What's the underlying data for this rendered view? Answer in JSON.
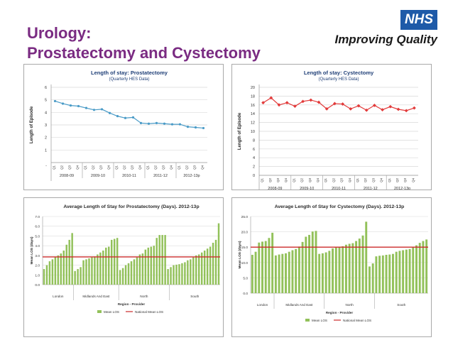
{
  "slide": {
    "title_line1": "Urology:",
    "title_line2": "Prostatectomy and Cystectomy",
    "title_color": "#7a2b82"
  },
  "logo": {
    "nhs": "NHS",
    "tagline": "Improving Quality",
    "nhs_color": "#1e5aa8"
  },
  "chart_data": [
    {
      "type": "line",
      "title": "Length of stay: Prostatectomy",
      "subtitle": "(Quarterly HES Data)",
      "xlabel": "",
      "ylabel": "Length of Episode",
      "ylim": [
        0,
        6
      ],
      "yticks": [
        1,
        2,
        3,
        4,
        5,
        6
      ],
      "ytick_labels": [
        "1",
        "2",
        "3",
        "4",
        "5",
        "6"
      ],
      "bottom_label": "-",
      "quarter_labels": [
        "Q1",
        "Q2",
        "Q3",
        "Q4",
        "Q1",
        "Q2",
        "Q3",
        "Q4",
        "Q1",
        "Q2",
        "Q3",
        "Q4",
        "Q1",
        "Q2",
        "Q3",
        "Q4",
        "Q1",
        "Q2",
        "Q3",
        "Q4"
      ],
      "year_groups": [
        "2008-09",
        "2009-10",
        "2010-11",
        "2011-12",
        "2012-13p"
      ],
      "grid": true,
      "color": "#4a9bc7",
      "series": [
        {
          "values": [
            4.9,
            4.7,
            4.55,
            4.5,
            4.35,
            4.2,
            4.25,
            3.95,
            3.7,
            3.55,
            3.6,
            3.15,
            3.1,
            3.15,
            3.1,
            3.05,
            3.05,
            2.85,
            2.8,
            2.75
          ]
        }
      ]
    },
    {
      "type": "line",
      "title": "Length of stay: Cystectomy",
      "subtitle": "(Quarterly HES Data)",
      "xlabel": "",
      "ylabel": "Length of Episode",
      "ylim": [
        0,
        20
      ],
      "yticks": [
        0,
        2,
        4,
        6,
        8,
        10,
        12,
        14,
        16,
        18,
        20
      ],
      "ytick_labels": [
        "0",
        "2",
        "4",
        "6",
        "8",
        "10",
        "12",
        "14",
        "16",
        "18",
        "20"
      ],
      "quarter_labels": [
        "Q1",
        "Q2",
        "Q3",
        "Q4",
        "Q1",
        "Q2",
        "Q3",
        "Q4",
        "Q1",
        "Q2",
        "Q3",
        "Q4",
        "Q1",
        "Q2",
        "Q3",
        "Q4",
        "Q1",
        "Q2",
        "Q3",
        "Q4"
      ],
      "year_groups": [
        "2008-09",
        "2009-10",
        "2010-11",
        "2011-12",
        "2012-13p"
      ],
      "grid": true,
      "color": "#e23a3a",
      "series": [
        {
          "values": [
            16.5,
            17.6,
            16.0,
            16.5,
            15.7,
            16.8,
            17.1,
            16.6,
            15.1,
            16.3,
            16.2,
            15.1,
            15.8,
            14.8,
            15.9,
            14.9,
            15.6,
            15.0,
            14.7,
            15.3
          ]
        }
      ]
    },
    {
      "type": "bar",
      "title": "Average Length of Stay for Prostatectomy (Days). 2012-13p",
      "xlabel": "Region - Provider",
      "ylabel": "Mean LOS (days)",
      "ylim": [
        0,
        7
      ],
      "yticks": [
        0,
        1,
        2,
        3,
        4,
        5,
        6,
        7
      ],
      "ytick_labels": [
        "0.0",
        "1.0",
        "2.0",
        "3.0",
        "4.0",
        "5.0",
        "6.0",
        "7.0"
      ],
      "regions": [
        "London",
        "Midlands And East",
        "North",
        "South"
      ],
      "region_bounds": [
        11,
        27,
        45
      ],
      "bar_color": "#92c15a",
      "line_color": "#cc2a2a",
      "national_mean": 2.85,
      "legend": [
        "Mean LOS",
        "National Mean LOS"
      ],
      "grid": true,
      "values": [
        1.6,
        2.0,
        2.4,
        2.6,
        2.85,
        3.0,
        3.2,
        3.5,
        4.1,
        4.6,
        5.3,
        1.4,
        1.6,
        1.8,
        2.5,
        2.6,
        2.7,
        2.8,
        2.9,
        3.1,
        3.3,
        3.5,
        3.8,
        3.9,
        4.6,
        4.7,
        4.8,
        1.5,
        1.7,
        2.0,
        2.2,
        2.4,
        2.6,
        2.8,
        3.1,
        3.2,
        3.6,
        3.8,
        3.9,
        4.0,
        4.8,
        5.1,
        5.1,
        5.1,
        1.6,
        1.8,
        2.0,
        2.05,
        2.1,
        2.2,
        2.3,
        2.5,
        2.6,
        2.8,
        3.0,
        3.1,
        3.3,
        3.5,
        3.7,
        3.9,
        4.3,
        4.6,
        6.3
      ]
    },
    {
      "type": "bar",
      "title": "Average Length of Stay for Cystectomy (Days). 2012-13p",
      "xlabel": "Region - Provider",
      "ylabel": "Mean LOS (days)",
      "ylim": [
        0,
        25
      ],
      "yticks": [
        0,
        5,
        10,
        15,
        20,
        25
      ],
      "ytick_labels": [
        "0.0",
        "5.0",
        "10.0",
        "15.0",
        "20.0",
        "25.0"
      ],
      "regions": [
        "London",
        "Midlands And East",
        "North",
        "South"
      ],
      "region_bounds": [
        7,
        22,
        37
      ],
      "bar_color": "#92c15a",
      "line_color": "#cc2a2a",
      "national_mean": 15.0,
      "legend": [
        "Mean LOS",
        "National Mean LOS"
      ],
      "grid": true,
      "values": [
        12.5,
        13.5,
        16.5,
        16.8,
        17.0,
        18.0,
        19.7,
        12.3,
        12.6,
        12.8,
        13.0,
        13.5,
        14.0,
        14.4,
        15.2,
        16.7,
        18.4,
        19.0,
        20.1,
        20.3,
        12.8,
        13.0,
        13.3,
        13.8,
        14.6,
        14.9,
        15.1,
        15.3,
        15.8,
        16.1,
        16.3,
        17.0,
        17.8,
        18.8,
        23.3,
        8.7,
        9.7,
        12.0,
        12.2,
        12.3,
        12.5,
        12.6,
        12.8,
        13.5,
        13.8,
        14.0,
        14.2,
        14.4,
        15.0,
        15.6,
        16.4,
        17.0,
        17.5
      ]
    }
  ]
}
